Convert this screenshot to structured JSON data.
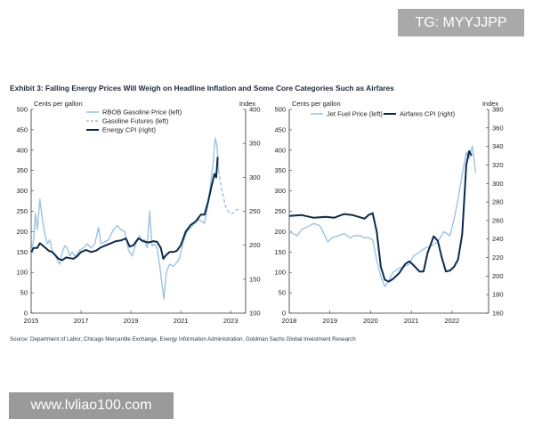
{
  "header": {
    "title": "Exhibit 3: Falling Energy Prices Will Weigh on Headline Inflation and Some Core Categories Such as Airfares"
  },
  "footer": {
    "source": "Source: Department of Labor, Chicago Mercantile Exchange, Energy Information Administration, Goldman Sachs Global Investment Research"
  },
  "watermarks": {
    "tg": "TG: MYYJJPP",
    "url": "www.lvliao100.com"
  },
  "colors": {
    "dark": "#0b2a4a",
    "light": "#9cc3e3",
    "axis": "#333333",
    "text": "#222222"
  },
  "chart_data": [
    {
      "type": "line",
      "title": "",
      "left_axis_title": "Cents per gallon",
      "right_axis_title": "Index",
      "xlim": [
        2015,
        2023.6
      ],
      "x_ticks": [
        "2015",
        "2017",
        "2019",
        "2021",
        "2023"
      ],
      "y_left": {
        "ylim": [
          0,
          500
        ],
        "ticks": [
          "0",
          "50",
          "100",
          "150",
          "200",
          "250",
          "300",
          "350",
          "400",
          "450",
          "500"
        ]
      },
      "y_right": {
        "ylim": [
          100,
          400
        ],
        "ticks": [
          "100",
          "150",
          "200",
          "250",
          "300",
          "350",
          "400"
        ]
      },
      "legend": [
        "RBOB Gasoline Price (left)",
        "Gasoline Futures (left)",
        "Energy CPI (right)"
      ],
      "legend_position": "top-left",
      "series": [
        {
          "name": "RBOB Gasoline Price (left)",
          "axis": "left",
          "style": "light",
          "points": [
            [
              2015.0,
              150
            ],
            [
              2015.1,
              180
            ],
            [
              2015.17,
              245
            ],
            [
              2015.25,
              205
            ],
            [
              2015.35,
              280
            ],
            [
              2015.45,
              230
            ],
            [
              2015.55,
              195
            ],
            [
              2015.65,
              170
            ],
            [
              2015.75,
              180
            ],
            [
              2015.85,
              150
            ],
            [
              2015.95,
              145
            ],
            [
              2016.05,
              130
            ],
            [
              2016.15,
              120
            ],
            [
              2016.25,
              150
            ],
            [
              2016.35,
              165
            ],
            [
              2016.45,
              160
            ],
            [
              2016.55,
              140
            ],
            [
              2016.65,
              150
            ],
            [
              2016.75,
              140
            ],
            [
              2016.85,
              145
            ],
            [
              2016.95,
              155
            ],
            [
              2017.1,
              160
            ],
            [
              2017.25,
              170
            ],
            [
              2017.4,
              160
            ],
            [
              2017.55,
              170
            ],
            [
              2017.7,
              210
            ],
            [
              2017.8,
              170
            ],
            [
              2017.95,
              175
            ],
            [
              2018.1,
              180
            ],
            [
              2018.3,
              205
            ],
            [
              2018.45,
              215
            ],
            [
              2018.6,
              205
            ],
            [
              2018.75,
              200
            ],
            [
              2018.9,
              155
            ],
            [
              2019.05,
              140
            ],
            [
              2019.2,
              170
            ],
            [
              2019.35,
              190
            ],
            [
              2019.45,
              175
            ],
            [
              2019.55,
              180
            ],
            [
              2019.65,
              160
            ],
            [
              2019.75,
              250
            ],
            [
              2019.85,
              165
            ],
            [
              2019.95,
              170
            ],
            [
              2020.05,
              160
            ],
            [
              2020.15,
              120
            ],
            [
              2020.25,
              70
            ],
            [
              2020.32,
              35
            ],
            [
              2020.42,
              100
            ],
            [
              2020.55,
              120
            ],
            [
              2020.7,
              115
            ],
            [
              2020.85,
              125
            ],
            [
              2020.95,
              135
            ],
            [
              2021.1,
              175
            ],
            [
              2021.25,
              200
            ],
            [
              2021.4,
              210
            ],
            [
              2021.55,
              220
            ],
            [
              2021.7,
              230
            ],
            [
              2021.85,
              225
            ],
            [
              2021.95,
              220
            ],
            [
              2022.1,
              270
            ],
            [
              2022.2,
              320
            ],
            [
              2022.3,
              370
            ],
            [
              2022.38,
              430
            ],
            [
              2022.45,
              410
            ],
            [
              2022.52,
              350
            ]
          ]
        },
        {
          "name": "Gasoline Futures (left)",
          "axis": "left",
          "style": "light-dashed",
          "points": [
            [
              2022.52,
              350
            ],
            [
              2022.65,
              300
            ],
            [
              2022.8,
              260
            ],
            [
              2022.95,
              245
            ],
            [
              2023.1,
              245
            ],
            [
              2023.25,
              255
            ],
            [
              2023.4,
              250
            ]
          ]
        },
        {
          "name": "Energy CPI (right)",
          "axis": "right",
          "style": "dark",
          "points": [
            [
              2015.0,
              190
            ],
            [
              2015.1,
              196
            ],
            [
              2015.25,
              196
            ],
            [
              2015.35,
              203
            ],
            [
              2015.45,
              200
            ],
            [
              2015.55,
              197
            ],
            [
              2015.7,
              192
            ],
            [
              2015.85,
              190
            ],
            [
              2015.95,
              186
            ],
            [
              2016.1,
              180
            ],
            [
              2016.25,
              178
            ],
            [
              2016.4,
              182
            ],
            [
              2016.55,
              181
            ],
            [
              2016.7,
              180
            ],
            [
              2016.85,
              184
            ],
            [
              2017.0,
              190
            ],
            [
              2017.2,
              193
            ],
            [
              2017.4,
              190
            ],
            [
              2017.6,
              192
            ],
            [
              2017.8,
              197
            ],
            [
              2018.0,
              200
            ],
            [
              2018.2,
              203
            ],
            [
              2018.4,
              206
            ],
            [
              2018.6,
              207
            ],
            [
              2018.8,
              210
            ],
            [
              2018.95,
              198
            ],
            [
              2019.1,
              200
            ],
            [
              2019.3,
              210
            ],
            [
              2019.5,
              206
            ],
            [
              2019.7,
              204
            ],
            [
              2019.9,
              206
            ],
            [
              2020.05,
              205
            ],
            [
              2020.2,
              196
            ],
            [
              2020.3,
              180
            ],
            [
              2020.4,
              185
            ],
            [
              2020.55,
              190
            ],
            [
              2020.7,
              190
            ],
            [
              2020.85,
              192
            ],
            [
              2021.0,
              200
            ],
            [
              2021.2,
              220
            ],
            [
              2021.4,
              230
            ],
            [
              2021.6,
              235
            ],
            [
              2021.8,
              245
            ],
            [
              2021.95,
              245
            ],
            [
              2022.1,
              265
            ],
            [
              2022.25,
              290
            ],
            [
              2022.35,
              305
            ],
            [
              2022.42,
              300
            ],
            [
              2022.48,
              330
            ]
          ]
        }
      ]
    },
    {
      "type": "line",
      "title": "",
      "left_axis_title": "Cents per gallon",
      "right_axis_title": "Index",
      "xlim": [
        2018,
        2022.9
      ],
      "x_ticks": [
        "2018",
        "2019",
        "2020",
        "2021",
        "2022"
      ],
      "y_left": {
        "ylim": [
          0,
          500
        ],
        "ticks": [
          "0",
          "50",
          "100",
          "150",
          "200",
          "250",
          "300",
          "350",
          "400",
          "450",
          "500"
        ]
      },
      "y_right": {
        "ylim": [
          160,
          380
        ],
        "ticks": [
          "160",
          "180",
          "200",
          "220",
          "240",
          "260",
          "280",
          "300",
          "320",
          "340",
          "360",
          "380"
        ]
      },
      "legend": [
        "Jet Fuel Price (left)",
        "Airfares CPI (right)"
      ],
      "legend_position": "top",
      "series": [
        {
          "name": "Jet Fuel Price (left)",
          "axis": "left",
          "style": "light",
          "points": [
            [
              2018.0,
              200
            ],
            [
              2018.1,
              195
            ],
            [
              2018.2,
              190
            ],
            [
              2018.3,
              205
            ],
            [
              2018.45,
              212
            ],
            [
              2018.6,
              220
            ],
            [
              2018.75,
              215
            ],
            [
              2018.85,
              195
            ],
            [
              2018.95,
              175
            ],
            [
              2019.05,
              185
            ],
            [
              2019.2,
              190
            ],
            [
              2019.35,
              195
            ],
            [
              2019.5,
              185
            ],
            [
              2019.6,
              190
            ],
            [
              2019.75,
              190
            ],
            [
              2019.85,
              185
            ],
            [
              2019.95,
              185
            ],
            [
              2020.05,
              180
            ],
            [
              2020.15,
              130
            ],
            [
              2020.25,
              90
            ],
            [
              2020.35,
              65
            ],
            [
              2020.45,
              80
            ],
            [
              2020.55,
              100
            ],
            [
              2020.7,
              110
            ],
            [
              2020.85,
              115
            ],
            [
              2020.95,
              120
            ],
            [
              2021.05,
              140
            ],
            [
              2021.2,
              150
            ],
            [
              2021.35,
              160
            ],
            [
              2021.5,
              165
            ],
            [
              2021.65,
              175
            ],
            [
              2021.8,
              200
            ],
            [
              2021.95,
              190
            ],
            [
              2022.05,
              230
            ],
            [
              2022.15,
              280
            ],
            [
              2022.25,
              340
            ],
            [
              2022.35,
              395
            ],
            [
              2022.42,
              380
            ],
            [
              2022.5,
              410
            ],
            [
              2022.58,
              345
            ]
          ]
        },
        {
          "name": "Airfares CPI (right)",
          "axis": "right",
          "style": "dark",
          "points": [
            [
              2018.0,
              265
            ],
            [
              2018.3,
              266
            ],
            [
              2018.6,
              263
            ],
            [
              2018.9,
              264
            ],
            [
              2019.1,
              263
            ],
            [
              2019.35,
              267
            ],
            [
              2019.55,
              266
            ],
            [
              2019.7,
              264
            ],
            [
              2019.85,
              262
            ],
            [
              2019.95,
              266
            ],
            [
              2020.05,
              268
            ],
            [
              2020.15,
              248
            ],
            [
              2020.25,
              210
            ],
            [
              2020.35,
              196
            ],
            [
              2020.45,
              194
            ],
            [
              2020.55,
              197
            ],
            [
              2020.7,
              203
            ],
            [
              2020.85,
              213
            ],
            [
              2020.95,
              216
            ],
            [
              2021.05,
              212
            ],
            [
              2021.2,
              205
            ],
            [
              2021.3,
              205
            ],
            [
              2021.4,
              225
            ],
            [
              2021.55,
              243
            ],
            [
              2021.65,
              238
            ],
            [
              2021.75,
              220
            ],
            [
              2021.85,
              205
            ],
            [
              2021.95,
              206
            ],
            [
              2022.05,
              210
            ],
            [
              2022.15,
              218
            ],
            [
              2022.25,
              245
            ],
            [
              2022.35,
              320
            ],
            [
              2022.42,
              335
            ],
            [
              2022.48,
              330
            ]
          ]
        }
      ]
    }
  ]
}
